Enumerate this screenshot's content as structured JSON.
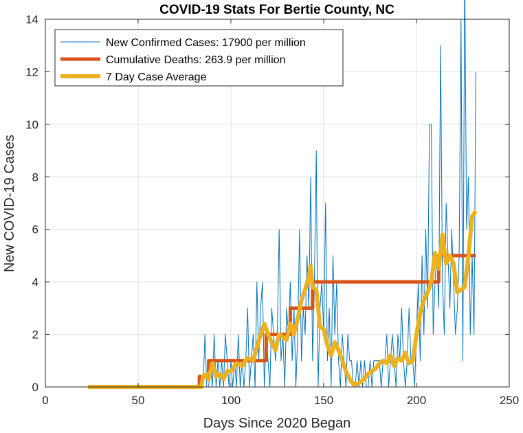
{
  "chart_data": {
    "type": "line",
    "title": "COVID-19 Stats For Bertie County, NC",
    "xlabel": "Days Since 2020 Began",
    "ylabel": "New COVID-19 Cases",
    "xlim": [
      0,
      250
    ],
    "ylim": [
      0,
      14
    ],
    "xticks": [
      0,
      50,
      100,
      150,
      200,
      250
    ],
    "yticks": [
      0,
      2,
      4,
      6,
      8,
      10,
      12,
      14
    ],
    "xtick_labels": [
      "0",
      "50",
      "100",
      "150",
      "200",
      "250"
    ],
    "ytick_labels": [
      "0",
      "2",
      "4",
      "6",
      "8",
      "10",
      "12",
      "14"
    ],
    "grid": true,
    "legend_position": "top-left",
    "series": [
      {
        "name": "New Confirmed Cases: 17900 per million",
        "color": "#0072BD",
        "style": "thin",
        "x_start": 23,
        "values": [
          0,
          0,
          0,
          0,
          0,
          0,
          0,
          0,
          0,
          0,
          0,
          0,
          0,
          0,
          0,
          0,
          0,
          0,
          0,
          0,
          0,
          0,
          0,
          0,
          0,
          0,
          0,
          0,
          0,
          0,
          0,
          0,
          0,
          0,
          0,
          0,
          0,
          0,
          0,
          0,
          0,
          0,
          0,
          0,
          0,
          0,
          0,
          0,
          0,
          0,
          0,
          0,
          0,
          0,
          0,
          0,
          0,
          0,
          0,
          0,
          0,
          0,
          0,
          2,
          0,
          0,
          1,
          0,
          2,
          0,
          1,
          0,
          1,
          0,
          2,
          1,
          0,
          1,
          0,
          1,
          0,
          2,
          0,
          1,
          0,
          1,
          3,
          0,
          1,
          2,
          0,
          4,
          1,
          3,
          4,
          0,
          2,
          1,
          0,
          3,
          2,
          1,
          2,
          6,
          1,
          2,
          0,
          3,
          2,
          4,
          1,
          3,
          0,
          2,
          6,
          1,
          3,
          2,
          5,
          3,
          8,
          1,
          4,
          9,
          0,
          3,
          4,
          2,
          7,
          1,
          3,
          0,
          5,
          2,
          4,
          1,
          0,
          2,
          1,
          0,
          2,
          1,
          1,
          0,
          0,
          1,
          0,
          1,
          0,
          1,
          0,
          0,
          1,
          0,
          1,
          1,
          1,
          1,
          0,
          1,
          1,
          2,
          0,
          1,
          2,
          1,
          0,
          2,
          1,
          3,
          1,
          0,
          1,
          3,
          1,
          1,
          0,
          2,
          4,
          1,
          5,
          2,
          6,
          3,
          10,
          10,
          2,
          4,
          5,
          3,
          13,
          4,
          2,
          7,
          5,
          3,
          6,
          4,
          2,
          3,
          5,
          14,
          1,
          16,
          6,
          8,
          2,
          5,
          2,
          12
        ]
      },
      {
        "name": "Cumulative Deaths: 263.9 per million",
        "color": "#D95319",
        "style": "thick",
        "points": [
          [
            23,
            0
          ],
          [
            83,
            0
          ],
          [
            83,
            0.4
          ],
          [
            88,
            0.4
          ],
          [
            88,
            1
          ],
          [
            93,
            1
          ],
          [
            93,
            1
          ],
          [
            119,
            1
          ],
          [
            119,
            2
          ],
          [
            132,
            2
          ],
          [
            132,
            3
          ],
          [
            144,
            3
          ],
          [
            144,
            4
          ],
          [
            212,
            4
          ],
          [
            212,
            5
          ],
          [
            232,
            5
          ]
        ]
      },
      {
        "name": "7 Day Case Average",
        "color": "#EDB120",
        "style": "thickest",
        "points": [
          [
            23,
            0
          ],
          [
            60,
            0
          ],
          [
            84,
            0
          ],
          [
            85,
            0.4
          ],
          [
            87,
            0.5
          ],
          [
            88,
            0.3
          ],
          [
            90,
            0.9
          ],
          [
            92,
            0.4
          ],
          [
            94,
            0.5
          ],
          [
            96,
            0.3
          ],
          [
            98,
            0.6
          ],
          [
            100,
            0.6
          ],
          [
            103,
            0.9
          ],
          [
            106,
            0.8
          ],
          [
            109,
            1.1
          ],
          [
            112,
            1.0
          ],
          [
            114,
            1.5
          ],
          [
            116,
            2.0
          ],
          [
            118,
            2.4
          ],
          [
            120,
            2.0
          ],
          [
            122,
            1.7
          ],
          [
            124,
            1.4
          ],
          [
            126,
            2.0
          ],
          [
            128,
            1.9
          ],
          [
            130,
            1.8
          ],
          [
            132,
            2.4
          ],
          [
            134,
            2.0
          ],
          [
            136,
            2.6
          ],
          [
            138,
            3.3
          ],
          [
            140,
            3.7
          ],
          [
            142,
            4.2
          ],
          [
            143,
            4.6
          ],
          [
            144,
            3.8
          ],
          [
            146,
            3.7
          ],
          [
            148,
            2.3
          ],
          [
            150,
            2.2
          ],
          [
            152,
            1.6
          ],
          [
            154,
            1.2
          ],
          [
            156,
            1.7
          ],
          [
            158,
            1.4
          ],
          [
            160,
            1.0
          ],
          [
            162,
            0.6
          ],
          [
            164,
            0.3
          ],
          [
            166,
            0.1
          ],
          [
            168,
            0.1
          ],
          [
            170,
            0.2
          ],
          [
            172,
            0.3
          ],
          [
            174,
            0.5
          ],
          [
            176,
            0.6
          ],
          [
            178,
            0.7
          ],
          [
            180,
            0.9
          ],
          [
            182,
            1.0
          ],
          [
            184,
            0.9
          ],
          [
            186,
            1.2
          ],
          [
            188,
            0.8
          ],
          [
            190,
            1.1
          ],
          [
            192,
            1.0
          ],
          [
            194,
            1.3
          ],
          [
            196,
            0.9
          ],
          [
            198,
            1.0
          ],
          [
            200,
            2.0
          ],
          [
            202,
            2.8
          ],
          [
            204,
            3.3
          ],
          [
            206,
            3.6
          ],
          [
            208,
            4.0
          ],
          [
            210,
            5.1
          ],
          [
            212,
            4.5
          ],
          [
            214,
            5.8
          ],
          [
            216,
            4.7
          ],
          [
            218,
            5.0
          ],
          [
            220,
            4.7
          ],
          [
            222,
            3.6
          ],
          [
            224,
            3.7
          ],
          [
            226,
            3.8
          ],
          [
            228,
            5.0
          ],
          [
            230,
            6.5
          ],
          [
            232,
            6.7
          ]
        ]
      }
    ]
  }
}
